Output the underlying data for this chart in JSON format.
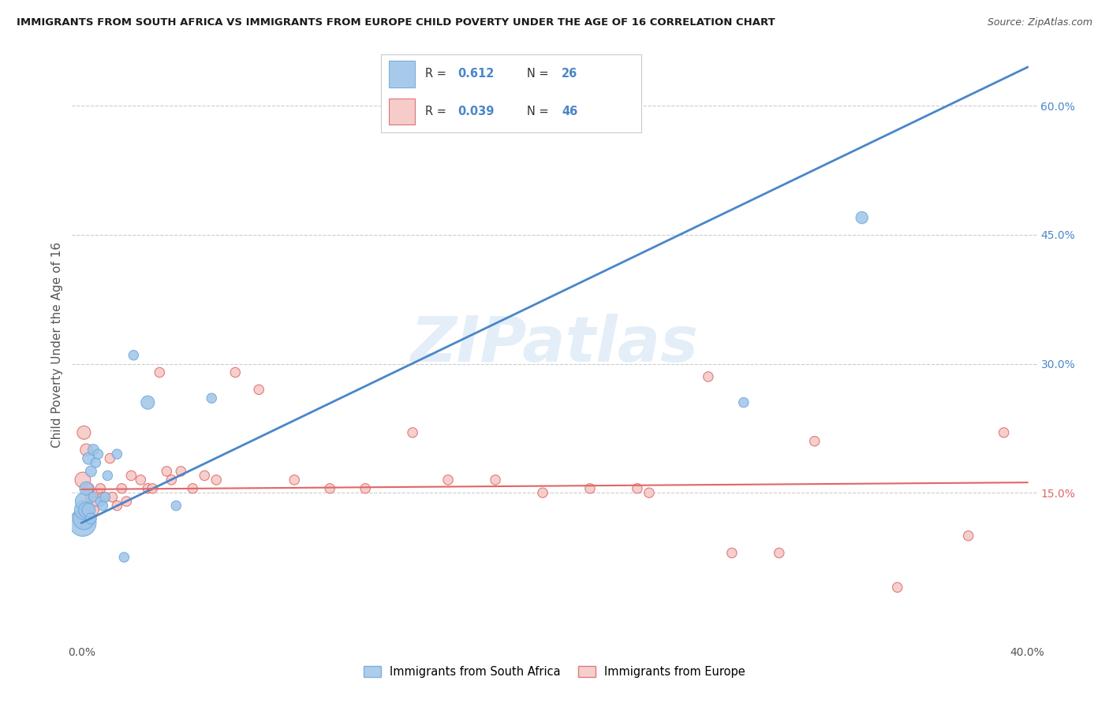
{
  "title": "IMMIGRANTS FROM SOUTH AFRICA VS IMMIGRANTS FROM EUROPE CHILD POVERTY UNDER THE AGE OF 16 CORRELATION CHART",
  "source": "Source: ZipAtlas.com",
  "ylabel": "Child Poverty Under the Age of 16",
  "xlim": [
    -0.004,
    0.404
  ],
  "ylim": [
    -0.025,
    0.67
  ],
  "xticks": [
    0.0,
    0.05,
    0.1,
    0.15,
    0.2,
    0.25,
    0.3,
    0.35,
    0.4
  ],
  "ytick_vals_right": [
    0.15,
    0.3,
    0.45,
    0.6
  ],
  "ytick_labels_right": [
    "15.0%",
    "30.0%",
    "45.0%",
    "60.0%"
  ],
  "ytick_colors_right": [
    "#e06666",
    "#4a86c8",
    "#4a86c8",
    "#4a86c8"
  ],
  "blue_color": "#9fc5e8",
  "pink_color": "#f4c7c3",
  "blue_edge_color": "#6fa8dc",
  "pink_edge_color": "#e06666",
  "blue_line_color": "#4a86c8",
  "pink_line_color": "#e06666",
  "R_blue": "0.612",
  "N_blue": "26",
  "R_pink": "0.039",
  "N_pink": "46",
  "legend_label_blue": "Immigrants from South Africa",
  "legend_label_pink": "Immigrants from Europe",
  "watermark": "ZIPatlas",
  "blue_line_x0": 0.0,
  "blue_line_y0": 0.115,
  "blue_line_x1": 0.4,
  "blue_line_y1": 0.645,
  "pink_line_x0": 0.0,
  "pink_line_y0": 0.154,
  "pink_line_x1": 0.4,
  "pink_line_y1": 0.162,
  "blue_scatter_x": [
    0.0005,
    0.001,
    0.001,
    0.001,
    0.002,
    0.002,
    0.003,
    0.003,
    0.004,
    0.004,
    0.005,
    0.005,
    0.006,
    0.007,
    0.008,
    0.009,
    0.01,
    0.011,
    0.015,
    0.018,
    0.022,
    0.028,
    0.04,
    0.055,
    0.28,
    0.33
  ],
  "blue_scatter_y": [
    0.115,
    0.12,
    0.13,
    0.14,
    0.13,
    0.155,
    0.13,
    0.19,
    0.175,
    0.12,
    0.145,
    0.2,
    0.185,
    0.195,
    0.14,
    0.135,
    0.145,
    0.17,
    0.195,
    0.075,
    0.31,
    0.255,
    0.135,
    0.26,
    0.255,
    0.47
  ],
  "blue_scatter_sizes": [
    600,
    400,
    300,
    250,
    200,
    150,
    150,
    120,
    100,
    100,
    80,
    100,
    80,
    80,
    80,
    80,
    80,
    80,
    80,
    80,
    80,
    150,
    80,
    80,
    80,
    120
  ],
  "pink_scatter_x": [
    0.0005,
    0.001,
    0.002,
    0.003,
    0.004,
    0.005,
    0.006,
    0.007,
    0.008,
    0.009,
    0.01,
    0.012,
    0.013,
    0.015,
    0.017,
    0.019,
    0.021,
    0.025,
    0.028,
    0.03,
    0.033,
    0.036,
    0.038,
    0.042,
    0.047,
    0.052,
    0.057,
    0.065,
    0.075,
    0.09,
    0.105,
    0.12,
    0.14,
    0.155,
    0.175,
    0.195,
    0.215,
    0.235,
    0.24,
    0.265,
    0.275,
    0.295,
    0.31,
    0.345,
    0.375,
    0.39
  ],
  "pink_scatter_y": [
    0.165,
    0.22,
    0.2,
    0.155,
    0.145,
    0.13,
    0.14,
    0.15,
    0.155,
    0.145,
    0.145,
    0.19,
    0.145,
    0.135,
    0.155,
    0.14,
    0.17,
    0.165,
    0.155,
    0.155,
    0.29,
    0.175,
    0.165,
    0.175,
    0.155,
    0.17,
    0.165,
    0.29,
    0.27,
    0.165,
    0.155,
    0.155,
    0.22,
    0.165,
    0.165,
    0.15,
    0.155,
    0.155,
    0.15,
    0.285,
    0.08,
    0.08,
    0.21,
    0.04,
    0.1,
    0.22
  ],
  "pink_scatter_sizes": [
    200,
    150,
    120,
    100,
    100,
    100,
    80,
    80,
    80,
    80,
    80,
    80,
    80,
    80,
    80,
    80,
    80,
    80,
    80,
    80,
    80,
    80,
    80,
    80,
    80,
    80,
    80,
    80,
    80,
    80,
    80,
    80,
    80,
    80,
    80,
    80,
    80,
    80,
    80,
    80,
    80,
    80,
    80,
    80,
    80,
    80
  ]
}
